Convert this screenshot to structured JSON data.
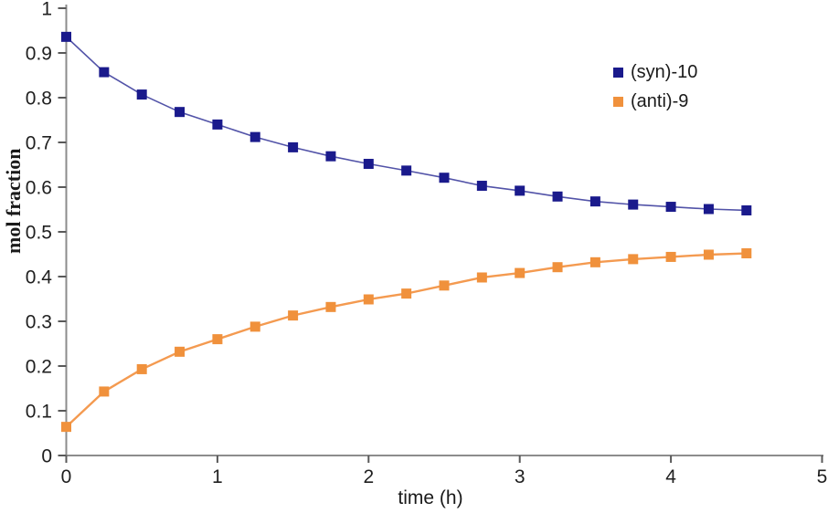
{
  "chart_data": {
    "type": "line",
    "title": "",
    "xlabel": "time (h)",
    "ylabel": "mol fraction",
    "grid": false,
    "legend_position": "upper-right",
    "axis_color": "#8c8c8c",
    "tick_color": "#595959",
    "text_color": "#1f1f1f",
    "x": [
      0,
      0.25,
      0.5,
      0.75,
      1,
      1.25,
      1.5,
      1.75,
      2,
      2.25,
      2.5,
      2.75,
      3,
      3.25,
      3.5,
      3.75,
      4,
      4.25,
      4.5
    ],
    "series": [
      {
        "name": "(syn)-10",
        "values": [
          0.936,
          0.857,
          0.807,
          0.768,
          0.74,
          0.712,
          0.689,
          0.669,
          0.652,
          0.637,
          0.621,
          0.603,
          0.592,
          0.579,
          0.568,
          0.561,
          0.556,
          0.551,
          0.548
        ],
        "marker_color": "#1a1a8c",
        "line_color": "#5253a8"
      },
      {
        "name": "(anti)-9",
        "values": [
          0.064,
          0.143,
          0.193,
          0.232,
          0.26,
          0.288,
          0.313,
          0.332,
          0.349,
          0.362,
          0.38,
          0.398,
          0.408,
          0.421,
          0.432,
          0.439,
          0.444,
          0.449,
          0.452
        ],
        "marker_color": "#f0913c",
        "line_color": "#f49a50"
      }
    ],
    "x_axis": {
      "range": [
        0,
        5
      ],
      "ticks": [
        0,
        1,
        2,
        3,
        4,
        5
      ],
      "tick_labels": [
        "0",
        "1",
        "2",
        "3",
        "4",
        "5"
      ]
    },
    "y_axis": {
      "range": [
        0,
        1
      ],
      "ticks": [
        0,
        0.1,
        0.2,
        0.3,
        0.4,
        0.5,
        0.6,
        0.7,
        0.8,
        0.9,
        1
      ],
      "tick_labels": [
        "0",
        "0.1",
        "0.2",
        "0.3",
        "0.4",
        "0.5",
        "0.6",
        "0.7",
        "0.8",
        "0.9",
        "1"
      ]
    }
  }
}
